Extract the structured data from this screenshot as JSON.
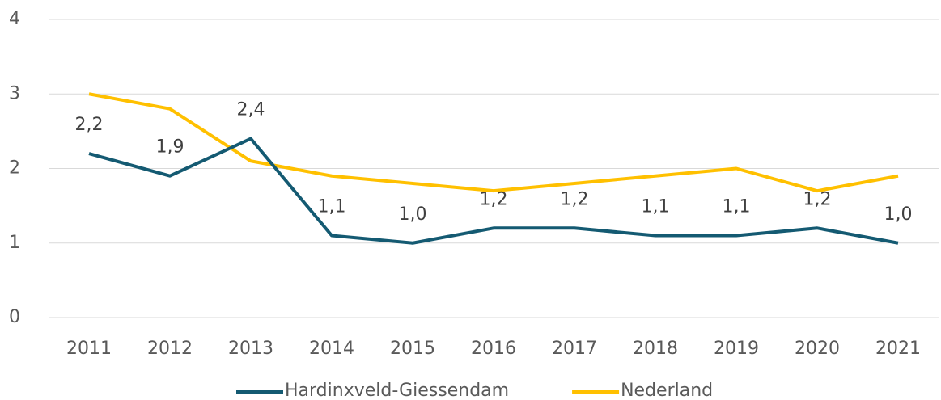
{
  "chart_data": {
    "type": "line",
    "categories": [
      "2011",
      "2012",
      "2013",
      "2014",
      "2015",
      "2016",
      "2017",
      "2018",
      "2019",
      "2020",
      "2021"
    ],
    "series": [
      {
        "name": "Hardinxveld-Giessendam",
        "color": "#145a72",
        "values": [
          2.2,
          1.9,
          2.4,
          1.1,
          1.0,
          1.2,
          1.2,
          1.1,
          1.1,
          1.2,
          1.0
        ],
        "value_labels": [
          "2,2",
          "1,9",
          "2,4",
          "1,1",
          "1,0",
          "1,2",
          "1,2",
          "1,1",
          "1,1",
          "1,2",
          "1,0"
        ]
      },
      {
        "name": "Nederland",
        "color": "#ffc000",
        "values": [
          3.0,
          2.8,
          2.1,
          1.9,
          1.8,
          1.7,
          1.8,
          1.9,
          2.0,
          1.7,
          1.9
        ]
      }
    ],
    "ylim": [
      0,
      4
    ],
    "yticks": [
      0,
      1,
      2,
      3,
      4
    ],
    "grid": true,
    "legend": "bottom"
  }
}
